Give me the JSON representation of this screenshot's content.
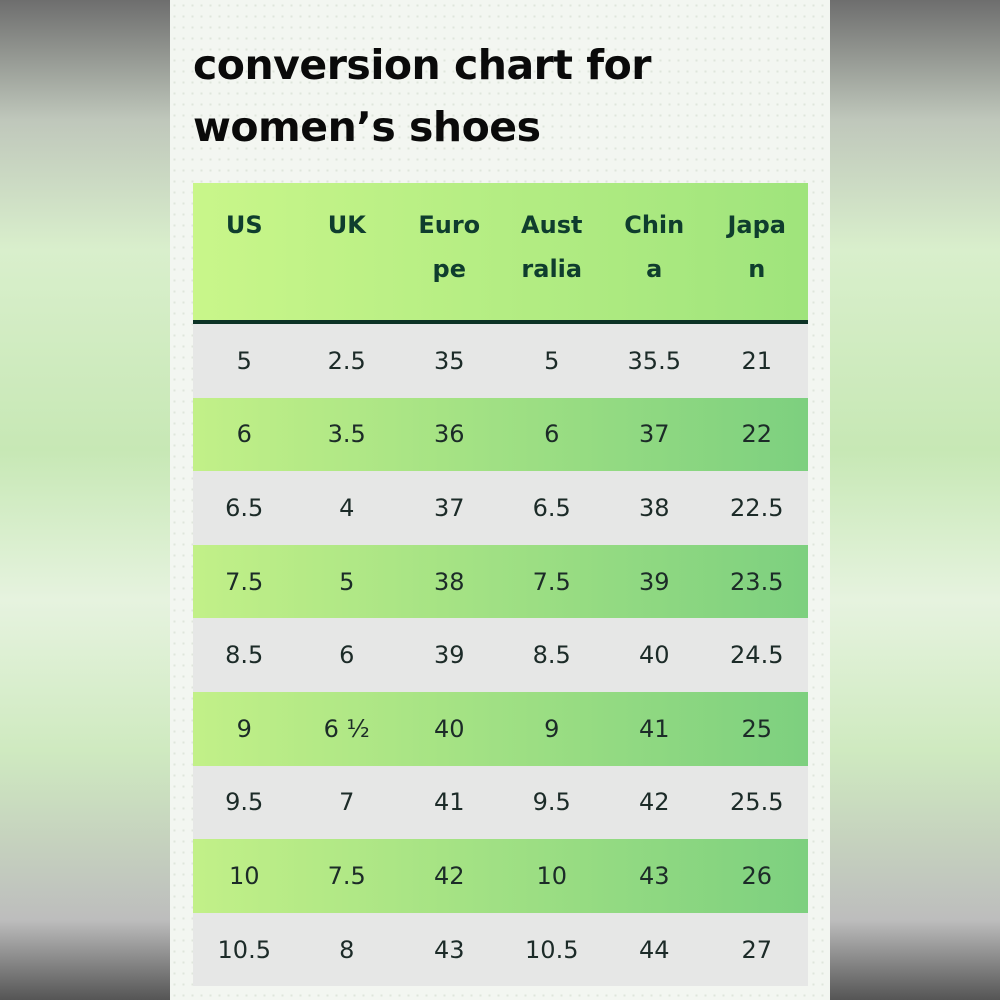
{
  "header": {
    "title": "conversion chart for women’s shoes"
  },
  "table": {
    "columns": [
      "US",
      "UK",
      "Europe",
      "Australia",
      "China",
      "Japan"
    ],
    "rows": [
      [
        "5",
        "2.5",
        "35",
        "5",
        "35.5",
        "21"
      ],
      [
        "6",
        "3.5",
        "36",
        "6",
        "37",
        "22"
      ],
      [
        "6.5",
        "4",
        "37",
        "6.5",
        "38",
        "22.5"
      ],
      [
        "7.5",
        "5",
        "38",
        "7.5",
        "39",
        "23.5"
      ],
      [
        "8.5",
        "6",
        "39",
        "8.5",
        "40",
        "24.5"
      ],
      [
        "9",
        "6 ½",
        "40",
        "9",
        "41",
        "25"
      ],
      [
        "9.5",
        "7",
        "41",
        "9.5",
        "42",
        "25.5"
      ],
      [
        "10",
        "7.5",
        "42",
        "10",
        "43",
        "26"
      ],
      [
        "10.5",
        "8",
        "43",
        "10.5",
        "44",
        "27"
      ]
    ]
  }
}
